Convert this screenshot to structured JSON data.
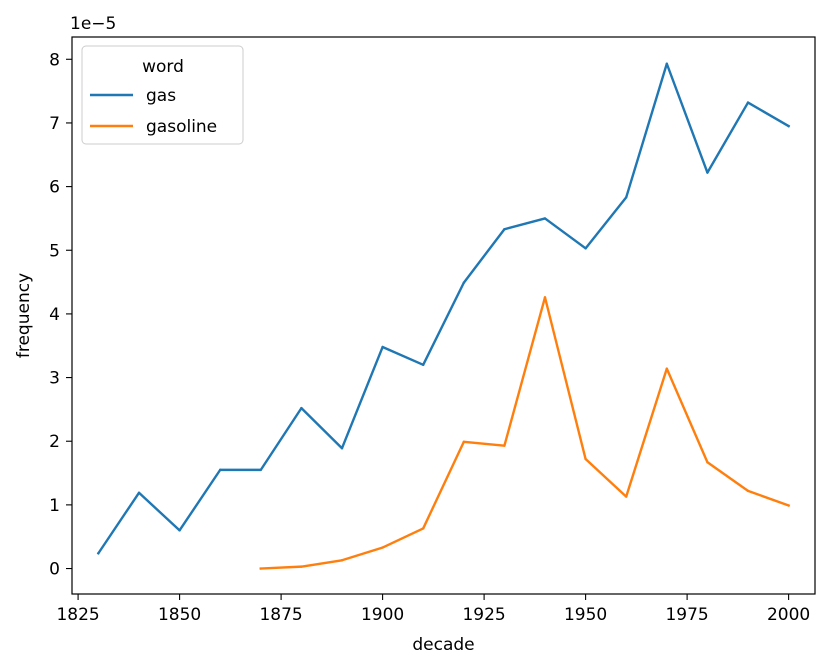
{
  "chart_data": {
    "type": "line",
    "title": "",
    "xlabel": "decade",
    "ylabel": "frequency",
    "y_offset_label": "1e−5",
    "xlim": [
      1823.5,
      2006.5
    ],
    "ylim": [
      -0.4,
      8.35
    ],
    "y_scale_note": "values in units of 1e-5",
    "x_ticks": [
      1825,
      1850,
      1875,
      1900,
      1925,
      1950,
      1975,
      2000
    ],
    "x_tick_labels": [
      "1825",
      "1850",
      "1875",
      "1900",
      "1925",
      "1950",
      "1975",
      "2000"
    ],
    "y_ticks": [
      0,
      1,
      2,
      3,
      4,
      5,
      6,
      7,
      8
    ],
    "y_tick_labels": [
      "0",
      "1",
      "2",
      "3",
      "4",
      "5",
      "6",
      "7",
      "8"
    ],
    "grid": false,
    "legend": {
      "title": "word",
      "placement": "top-left"
    },
    "series": [
      {
        "name": "gas",
        "color": "#1f77b4",
        "x": [
          1830,
          1840,
          1850,
          1860,
          1870,
          1880,
          1890,
          1900,
          1910,
          1920,
          1930,
          1940,
          1950,
          1960,
          1970,
          1980,
          1990,
          2000
        ],
        "values": [
          0.24,
          1.19,
          0.6,
          1.55,
          1.55,
          2.52,
          1.89,
          3.48,
          3.2,
          4.49,
          5.33,
          5.5,
          5.03,
          5.83,
          7.93,
          6.22,
          7.32,
          6.95
        ]
      },
      {
        "name": "gasoline",
        "color": "#ff7f0e",
        "x": [
          1870,
          1880,
          1890,
          1900,
          1910,
          1920,
          1930,
          1940,
          1950,
          1960,
          1970,
          1980,
          1990,
          2000
        ],
        "values": [
          0.0,
          0.03,
          0.13,
          0.33,
          0.63,
          1.99,
          1.93,
          4.26,
          1.72,
          1.13,
          3.14,
          1.67,
          1.22,
          0.99
        ]
      }
    ]
  }
}
